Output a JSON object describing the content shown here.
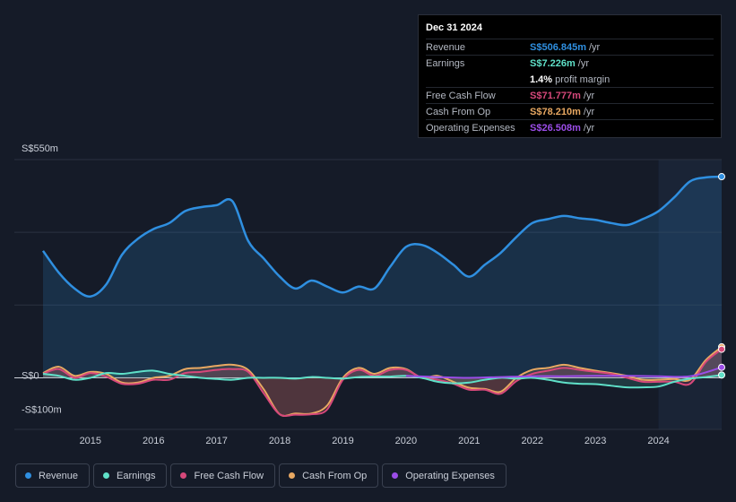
{
  "tooltip": {
    "date": "Dec 31 2024",
    "rows": [
      {
        "label": "Revenue",
        "value": "S$506.845m",
        "unit": "/yr",
        "color": "#2f8fe0"
      },
      {
        "label": "Earnings",
        "value": "S$7.226m",
        "unit": "/yr",
        "color": "#5fe0c8"
      },
      {
        "label": "",
        "value": "1.4%",
        "unit": "profit margin",
        "color": "#ffffff"
      },
      {
        "label": "Free Cash Flow",
        "value": "S$71.777m",
        "unit": "/yr",
        "color": "#d6487a"
      },
      {
        "label": "Cash From Op",
        "value": "S$78.210m",
        "unit": "/yr",
        "color": "#e8a862"
      },
      {
        "label": "Operating Expenses",
        "value": "S$26.508m",
        "unit": "/yr",
        "color": "#9b4de8"
      }
    ]
  },
  "legend": [
    {
      "label": "Revenue",
      "color": "#2f8fe0"
    },
    {
      "label": "Earnings",
      "color": "#5fe0c8"
    },
    {
      "label": "Free Cash Flow",
      "color": "#d6487a"
    },
    {
      "label": "Cash From Op",
      "color": "#e8a862"
    },
    {
      "label": "Operating Expenses",
      "color": "#9b4de8"
    }
  ],
  "chart_data": {
    "type": "area",
    "title": "",
    "xlabel": "",
    "ylabel": "",
    "ylim": [
      -130,
      550
    ],
    "xlim": [
      2014.25,
      2025.0
    ],
    "y_tick_labels": [
      {
        "value": 550,
        "label": "S$550m"
      },
      {
        "value": 0,
        "label": "S$0"
      },
      {
        "value": -100,
        "label": "-S$100m"
      }
    ],
    "x_ticks": [
      2015,
      2016,
      2017,
      2018,
      2019,
      2020,
      2021,
      2022,
      2023,
      2024
    ],
    "x_tick_labels": [
      "2015",
      "2016",
      "2017",
      "2018",
      "2019",
      "2020",
      "2021",
      "2022",
      "2023",
      "2024"
    ],
    "highlight_from": 2024.0,
    "series": [
      {
        "name": "Revenue",
        "color": "#2f8fe0",
        "fill": true,
        "x": [
          2014.25,
          2014.5,
          2014.75,
          2015.0,
          2015.25,
          2015.5,
          2015.75,
          2016.0,
          2016.25,
          2016.5,
          2016.75,
          2017.0,
          2017.25,
          2017.5,
          2017.75,
          2018.0,
          2018.25,
          2018.5,
          2018.75,
          2019.0,
          2019.25,
          2019.5,
          2019.75,
          2020.0,
          2020.25,
          2020.5,
          2020.75,
          2021.0,
          2021.25,
          2021.5,
          2021.75,
          2022.0,
          2022.25,
          2022.5,
          2022.75,
          2023.0,
          2023.25,
          2023.5,
          2023.75,
          2024.0,
          2024.25,
          2024.5,
          2024.75,
          2025.0
        ],
        "y": [
          320,
          265,
          225,
          205,
          235,
          310,
          350,
          375,
          390,
          420,
          430,
          435,
          445,
          345,
          300,
          255,
          225,
          245,
          230,
          215,
          230,
          225,
          280,
          330,
          335,
          315,
          285,
          255,
          285,
          315,
          355,
          390,
          400,
          408,
          402,
          398,
          390,
          385,
          400,
          420,
          455,
          495,
          505,
          507
        ]
      },
      {
        "name": "Earnings",
        "color": "#5fe0c8",
        "fill": true,
        "x": [
          2014.25,
          2014.5,
          2014.75,
          2015.0,
          2015.25,
          2015.5,
          2015.75,
          2016.0,
          2016.25,
          2016.5,
          2016.75,
          2017.0,
          2017.25,
          2017.5,
          2017.75,
          2018.0,
          2018.25,
          2018.5,
          2018.75,
          2019.0,
          2019.25,
          2019.5,
          2019.75,
          2020.0,
          2020.25,
          2020.5,
          2020.75,
          2021.0,
          2021.25,
          2021.5,
          2021.75,
          2022.0,
          2022.25,
          2022.5,
          2022.75,
          2023.0,
          2023.25,
          2023.5,
          2023.75,
          2024.0,
          2024.25,
          2024.5,
          2024.75,
          2025.0
        ],
        "y": [
          10,
          5,
          -5,
          0,
          12,
          10,
          15,
          18,
          10,
          5,
          0,
          -3,
          -5,
          0,
          0,
          0,
          -2,
          2,
          0,
          -2,
          2,
          3,
          3,
          5,
          0,
          -10,
          -14,
          -12,
          -5,
          0,
          -2,
          0,
          -5,
          -12,
          -15,
          -16,
          -20,
          -24,
          -24,
          -22,
          -10,
          -2,
          2,
          7
        ]
      },
      {
        "name": "Free Cash Flow",
        "color": "#d6487a",
        "fill": true,
        "x": [
          2014.25,
          2014.5,
          2014.75,
          2015.0,
          2015.25,
          2015.5,
          2015.75,
          2016.0,
          2016.25,
          2016.5,
          2016.75,
          2017.0,
          2017.25,
          2017.5,
          2017.75,
          2018.0,
          2018.25,
          2018.5,
          2018.75,
          2019.0,
          2019.25,
          2019.5,
          2019.75,
          2020.0,
          2020.25,
          2020.5,
          2020.75,
          2021.0,
          2021.25,
          2021.5,
          2021.75,
          2022.0,
          2022.25,
          2022.5,
          2022.75,
          2023.0,
          2023.25,
          2023.5,
          2023.75,
          2024.0,
          2024.25,
          2024.5,
          2024.75,
          2025.0
        ],
        "y": [
          10,
          22,
          0,
          12,
          3,
          -15,
          -15,
          -5,
          -5,
          12,
          15,
          20,
          22,
          15,
          -40,
          -92,
          -93,
          -92,
          -80,
          -5,
          20,
          5,
          20,
          20,
          0,
          -5,
          -15,
          -30,
          -30,
          -40,
          -8,
          10,
          18,
          25,
          20,
          15,
          10,
          0,
          -10,
          -10,
          -10,
          -15,
          40,
          72
        ]
      },
      {
        "name": "Cash From Op",
        "color": "#e8a862",
        "fill": true,
        "x": [
          2014.25,
          2014.5,
          2014.75,
          2015.0,
          2015.25,
          2015.5,
          2015.75,
          2016.0,
          2016.25,
          2016.5,
          2016.75,
          2017.0,
          2017.25,
          2017.5,
          2017.75,
          2018.0,
          2018.25,
          2018.5,
          2018.75,
          2019.0,
          2019.25,
          2019.5,
          2019.75,
          2020.0,
          2020.25,
          2020.5,
          2020.75,
          2021.0,
          2021.25,
          2021.5,
          2021.75,
          2022.0,
          2022.25,
          2022.5,
          2022.75,
          2023.0,
          2023.25,
          2023.5,
          2023.75,
          2024.0,
          2024.25,
          2024.5,
          2024.75,
          2025.0
        ],
        "y": [
          12,
          28,
          5,
          15,
          10,
          -12,
          -12,
          0,
          5,
          22,
          25,
          30,
          33,
          20,
          -30,
          -92,
          -90,
          -90,
          -70,
          0,
          25,
          10,
          25,
          22,
          0,
          5,
          -10,
          -25,
          -28,
          -35,
          0,
          20,
          25,
          33,
          25,
          18,
          12,
          5,
          -5,
          -5,
          -3,
          -5,
          45,
          78
        ]
      },
      {
        "name": "Operating Expenses",
        "color": "#9b4de8",
        "fill": false,
        "x": [
          2020.0,
          2020.5,
          2021.0,
          2021.5,
          2022.0,
          2022.5,
          2023.0,
          2023.5,
          2024.0,
          2024.5,
          2025.0
        ],
        "y": [
          5,
          2,
          0,
          2,
          4,
          4,
          5,
          5,
          4,
          4,
          26.5
        ]
      }
    ]
  }
}
